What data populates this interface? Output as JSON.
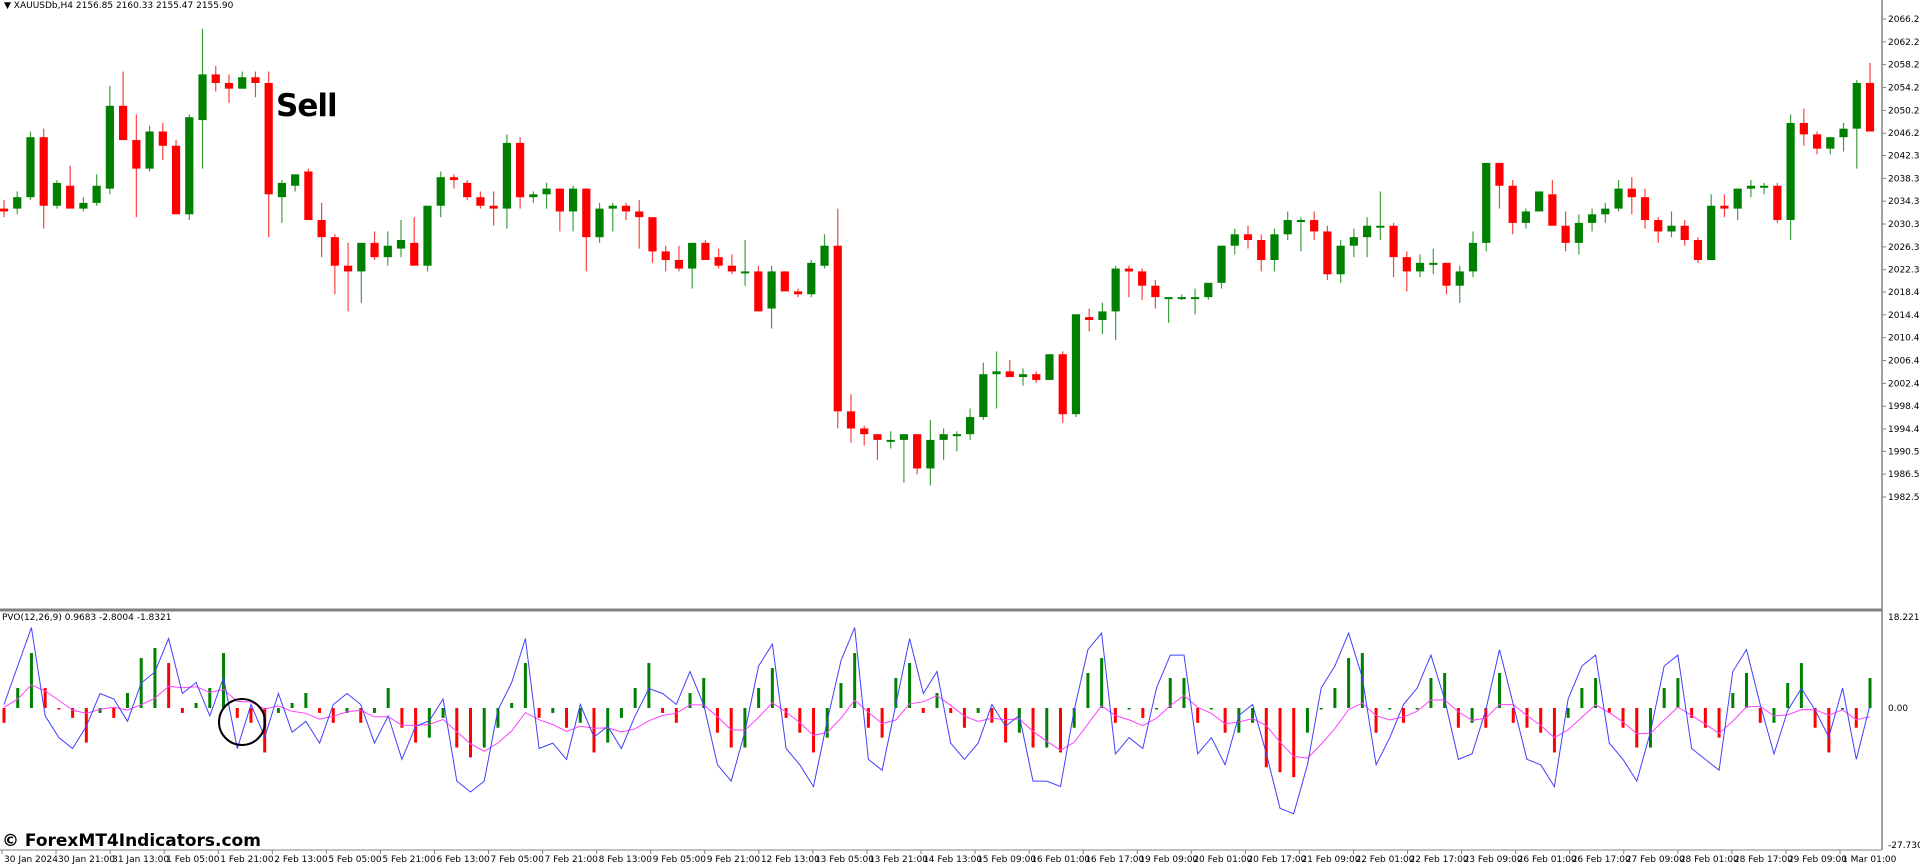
{
  "header": {
    "symbol_line": "XAUUSDb,H4  2156.85 2160.33 2155.47 2155.90",
    "arrow_icon": "triangle-down"
  },
  "annotation": {
    "sell_label": "Sell"
  },
  "indicator": {
    "label": "PVO(12,26,9) 0.9683 -2.8004 -1.8321",
    "axis_max": "18.2212",
    "axis_zero": "0.00",
    "axis_min": "-27.7304"
  },
  "watermark": "© ForexMT4Indicators.com",
  "colors": {
    "bull": "#008000",
    "bear": "#FF0000",
    "pvo_line": "#4040FF",
    "signal_line": "#FF40FF",
    "axis": "#808080",
    "text": "#000000",
    "circle": "#000000"
  },
  "chart_data": [
    {
      "type": "candlestick",
      "title": "XAUUSDb,H4",
      "ylim": [
        1982.5,
        2066.2
      ],
      "y_ticks": [
        "2066.20",
        "2062.20",
        "2058.20",
        "2054.20",
        "2050.20",
        "2046.20",
        "2042.30",
        "2038.30",
        "2034.30",
        "2030.30",
        "2026.30",
        "2022.30",
        "2018.40",
        "2014.40",
        "2010.40",
        "2006.40",
        "2002.40",
        "1998.40",
        "1994.40",
        "1990.50",
        "1986.50",
        "1982.50"
      ],
      "x_ticks": [
        "30 Jan 2024",
        "30 Jan 21:00",
        "31 Jan 13:00",
        "1 Feb 05:00",
        "1 Feb 21:00",
        "2 Feb 13:00",
        "5 Feb 05:00",
        "5 Feb 21:00",
        "6 Feb 13:00",
        "7 Feb 05:00",
        "7 Feb 21:00",
        "8 Feb 13:00",
        "9 Feb 05:00",
        "9 Feb 21:00",
        "12 Feb 13:00",
        "13 Feb 05:00",
        "13 Feb 21:00",
        "14 Feb 13:00",
        "15 Feb 09:00",
        "16 Feb 01:00",
        "16 Feb 17:00",
        "19 Feb 09:00",
        "20 Feb 01:00",
        "20 Feb 17:00",
        "21 Feb 09:00",
        "22 Feb 01:00",
        "22 Feb 17:00",
        "23 Feb 09:00",
        "26 Feb 01:00",
        "26 Feb 17:00",
        "27 Feb 09:00",
        "28 Feb 01:00",
        "28 Feb 17:00",
        "29 Feb 09:00",
        "1 Mar 01:00"
      ],
      "ohlc": [
        [
          2033.0,
          2034.5,
          2031.5,
          2032.5
        ],
        [
          2033.0,
          2036.0,
          2032.0,
          2035.0
        ],
        [
          2035.0,
          2046.5,
          2034.5,
          2045.5
        ],
        [
          2045.5,
          2047.0,
          2029.5,
          2033.5
        ],
        [
          2033.5,
          2038.0,
          2033.0,
          2037.5
        ],
        [
          2037.0,
          2040.5,
          2033.5,
          2033.0
        ],
        [
          2033.0,
          2035.0,
          2032.5,
          2034.0
        ],
        [
          2034.0,
          2039.0,
          2033.5,
          2037.0
        ],
        [
          2036.5,
          2054.5,
          2035.5,
          2051.0
        ],
        [
          2051.0,
          2057.0,
          2047.0,
          2045.0
        ],
        [
          2045.0,
          2049.5,
          2031.5,
          2040.0
        ],
        [
          2040.0,
          2047.5,
          2039.5,
          2046.5
        ],
        [
          2046.5,
          2048.0,
          2041.5,
          2044.0
        ],
        [
          2044.0,
          2045.0,
          2033.0,
          2032.0
        ],
        [
          2032.0,
          2049.5,
          2031.0,
          2049.0
        ],
        [
          2048.5,
          2064.5,
          2040.0,
          2056.5
        ],
        [
          2056.5,
          2058.0,
          2053.5,
          2055.0
        ],
        [
          2055.0,
          2056.5,
          2051.5,
          2054.0
        ],
        [
          2054.0,
          2057.0,
          2054.0,
          2056.0
        ],
        [
          2056.0,
          2057.0,
          2052.5,
          2055.0
        ],
        [
          2055.0,
          2057.0,
          2028.0,
          2035.5
        ],
        [
          2035.0,
          2038.0,
          2030.5,
          2037.5
        ],
        [
          2037.0,
          2039.0,
          2036.0,
          2039.0
        ],
        [
          2039.5,
          2040.0,
          2032.0,
          2031.0
        ],
        [
          2031.0,
          2034.0,
          2024.5,
          2028.0
        ],
        [
          2028.0,
          2028.5,
          2018.0,
          2023.0
        ],
        [
          2023.0,
          2027.0,
          2015.0,
          2022.0
        ],
        [
          2022.0,
          2027.0,
          2016.5,
          2027.0
        ],
        [
          2027.0,
          2029.0,
          2024.0,
          2024.5
        ],
        [
          2024.5,
          2029.0,
          2023.0,
          2026.5
        ],
        [
          2026.0,
          2031.0,
          2024.5,
          2027.5
        ],
        [
          2027.0,
          2031.5,
          2023.5,
          2023.0
        ],
        [
          2023.0,
          2033.0,
          2022.0,
          2033.5
        ],
        [
          2033.5,
          2039.5,
          2031.5,
          2038.5
        ],
        [
          2038.5,
          2039.0,
          2036.5,
          2038.0
        ],
        [
          2037.5,
          2038.0,
          2034.5,
          2035.0
        ],
        [
          2035.0,
          2036.0,
          2033.0,
          2033.5
        ],
        [
          2033.5,
          2036.0,
          2030.0,
          2033.0
        ],
        [
          2033.0,
          2046.0,
          2029.5,
          2044.5
        ],
        [
          2044.5,
          2045.5,
          2033.0,
          2035.0
        ],
        [
          2035.0,
          2036.0,
          2034.0,
          2035.5
        ],
        [
          2035.5,
          2037.5,
          2033.0,
          2036.5
        ],
        [
          2036.5,
          2036.5,
          2029.0,
          2032.5
        ],
        [
          2032.5,
          2037.0,
          2029.0,
          2036.5
        ],
        [
          2036.5,
          2036.5,
          2022.0,
          2028.0
        ],
        [
          2028.0,
          2034.0,
          2027.0,
          2033.0
        ],
        [
          2033.0,
          2034.0,
          2029.0,
          2033.5
        ],
        [
          2033.5,
          2034.0,
          2031.0,
          2032.5
        ],
        [
          2032.5,
          2034.5,
          2026.0,
          2031.5
        ],
        [
          2031.5,
          2031.5,
          2023.5,
          2025.5
        ],
        [
          2025.5,
          2026.5,
          2022.0,
          2024.0
        ],
        [
          2024.0,
          2026.5,
          2022.0,
          2022.5
        ],
        [
          2022.5,
          2027.0,
          2019.0,
          2027.0
        ],
        [
          2027.0,
          2027.5,
          2024.5,
          2024.0
        ],
        [
          2024.5,
          2026.0,
          2022.5,
          2023.0
        ],
        [
          2023.0,
          2025.0,
          2021.5,
          2022.0
        ],
        [
          2022.0,
          2027.5,
          2019.5,
          2022.0
        ],
        [
          2022.0,
          2023.0,
          2016.0,
          2015.0
        ],
        [
          2015.5,
          2023.0,
          2012.0,
          2022.0
        ],
        [
          2022.0,
          2022.0,
          2018.5,
          2018.5
        ],
        [
          2018.5,
          2019.0,
          2017.5,
          2018.0
        ],
        [
          2018.0,
          2024.0,
          2017.5,
          2023.5
        ],
        [
          2023.0,
          2028.5,
          2022.5,
          2026.5
        ],
        [
          2026.5,
          2033.0,
          1994.5,
          1997.5
        ],
        [
          1997.5,
          2000.5,
          1992.0,
          1994.5
        ],
        [
          1994.5,
          1995.0,
          1991.5,
          1993.5
        ],
        [
          1993.5,
          1993.5,
          1989.0,
          1992.5
        ],
        [
          1992.5,
          1994.0,
          1991.0,
          1992.5
        ],
        [
          1992.5,
          1993.5,
          1985.0,
          1993.5
        ],
        [
          1993.5,
          1993.5,
          1986.5,
          1987.5
        ],
        [
          1987.5,
          1996.0,
          1984.5,
          1992.5
        ],
        [
          1992.5,
          1994.5,
          1989.0,
          1993.5
        ],
        [
          1993.5,
          1994.0,
          1990.5,
          1993.5
        ],
        [
          1993.5,
          1998.0,
          1992.5,
          1996.5
        ],
        [
          1996.5,
          2006.0,
          1996.0,
          2004.0
        ],
        [
          2004.0,
          2008.0,
          1998.0,
          2004.5
        ],
        [
          2004.5,
          2006.5,
          2003.5,
          2003.5
        ],
        [
          2003.5,
          2005.0,
          2002.0,
          2004.0
        ],
        [
          2004.0,
          2004.5,
          2002.5,
          2003.0
        ],
        [
          2003.0,
          2007.5,
          2003.0,
          2007.5
        ],
        [
          2007.5,
          2008.0,
          1995.5,
          1997.0
        ],
        [
          1997.0,
          2014.0,
          1996.5,
          2014.5
        ],
        [
          2014.0,
          2015.5,
          2011.5,
          2013.5
        ],
        [
          2013.5,
          2016.5,
          2011.0,
          2015.0
        ],
        [
          2015.0,
          2023.0,
          2010.0,
          2022.5
        ],
        [
          2022.5,
          2023.0,
          2017.5,
          2022.0
        ],
        [
          2022.0,
          2022.5,
          2017.0,
          2019.5
        ],
        [
          2019.5,
          2020.5,
          2015.5,
          2017.5
        ],
        [
          2017.5,
          2017.5,
          2013.0,
          2017.5
        ],
        [
          2017.5,
          2018.0,
          2017.0,
          2017.5
        ],
        [
          2017.5,
          2019.0,
          2014.5,
          2017.5
        ],
        [
          2017.5,
          2020.0,
          2017.0,
          2020.0
        ],
        [
          2020.0,
          2026.5,
          2019.0,
          2026.5
        ],
        [
          2026.5,
          2029.5,
          2025.0,
          2028.5
        ],
        [
          2028.5,
          2030.0,
          2026.0,
          2027.5
        ],
        [
          2027.5,
          2028.5,
          2022.0,
          2024.0
        ],
        [
          2024.0,
          2029.5,
          2022.0,
          2028.5
        ],
        [
          2028.5,
          2032.5,
          2027.5,
          2031.0
        ],
        [
          2031.0,
          2031.5,
          2025.5,
          2031.0
        ],
        [
          2031.0,
          2032.5,
          2027.5,
          2029.0
        ],
        [
          2029.0,
          2030.0,
          2020.5,
          2021.5
        ],
        [
          2021.5,
          2027.5,
          2020.0,
          2026.5
        ],
        [
          2026.5,
          2029.5,
          2024.5,
          2028.0
        ],
        [
          2028.0,
          2031.5,
          2024.5,
          2030.0
        ],
        [
          2030.0,
          2036.0,
          2027.5,
          2030.0
        ],
        [
          2030.0,
          2030.5,
          2021.0,
          2024.5
        ],
        [
          2024.5,
          2025.5,
          2018.5,
          2022.0
        ],
        [
          2022.0,
          2025.0,
          2021.0,
          2023.5
        ],
        [
          2023.5,
          2026.0,
          2021.5,
          2023.5
        ],
        [
          2023.5,
          2023.5,
          2018.0,
          2019.5
        ],
        [
          2019.5,
          2023.0,
          2016.5,
          2022.0
        ],
        [
          2022.0,
          2029.0,
          2021.0,
          2027.0
        ],
        [
          2027.0,
          2041.0,
          2025.5,
          2041.0
        ],
        [
          2041.0,
          2041.0,
          2033.0,
          2037.0
        ],
        [
          2037.0,
          2038.0,
          2028.5,
          2030.5
        ],
        [
          2030.5,
          2033.0,
          2029.5,
          2032.5
        ],
        [
          2032.5,
          2036.0,
          2032.5,
          2036.0
        ],
        [
          2035.5,
          2038.0,
          2030.5,
          2030.0
        ],
        [
          2030.0,
          2032.5,
          2025.5,
          2027.0
        ],
        [
          2027.0,
          2032.0,
          2025.0,
          2030.5
        ],
        [
          2030.5,
          2033.0,
          2029.0,
          2032.0
        ],
        [
          2032.0,
          2034.0,
          2030.5,
          2033.0
        ],
        [
          2033.0,
          2038.0,
          2032.5,
          2036.5
        ],
        [
          2036.5,
          2038.5,
          2032.0,
          2035.0
        ],
        [
          2035.0,
          2036.5,
          2029.5,
          2031.0
        ],
        [
          2031.0,
          2031.5,
          2027.0,
          2029.0
        ],
        [
          2029.0,
          2032.5,
          2028.0,
          2030.0
        ],
        [
          2030.0,
          2031.0,
          2026.5,
          2027.5
        ],
        [
          2027.5,
          2028.0,
          2023.5,
          2024.0
        ],
        [
          2024.0,
          2035.5,
          2024.0,
          2033.5
        ],
        [
          2033.5,
          2035.5,
          2031.5,
          2033.0
        ],
        [
          2033.0,
          2036.0,
          2031.0,
          2036.5
        ],
        [
          2036.5,
          2038.0,
          2035.0,
          2037.0
        ],
        [
          2037.0,
          2037.5,
          2035.5,
          2037.0
        ],
        [
          2037.0,
          2037.5,
          2030.5,
          2031.0
        ],
        [
          2031.0,
          2049.5,
          2027.5,
          2048.0
        ],
        [
          2048.0,
          2050.5,
          2044.0,
          2046.0
        ],
        [
          2046.0,
          2046.5,
          2042.5,
          2043.5
        ],
        [
          2043.5,
          2045.0,
          2042.5,
          2045.5
        ],
        [
          2045.5,
          2048.0,
          2043.0,
          2047.0
        ],
        [
          2047.0,
          2055.5,
          2040.0,
          2055.0
        ],
        [
          2055.0,
          2058.5,
          2046.5,
          2046.5
        ]
      ]
    },
    {
      "type": "histogram+line",
      "title": "PVO(12,26,9)",
      "ylim": [
        -27.7304,
        18.2212
      ],
      "series": [
        {
          "name": "PVO histogram",
          "values": [
            -3,
            4,
            11,
            4,
            0,
            -2,
            -7,
            -1,
            -2,
            3,
            10,
            12,
            9,
            -1,
            1,
            4,
            11,
            -2,
            -3,
            -9,
            -1,
            1,
            3,
            -1,
            -3,
            -1,
            -3,
            -1,
            4,
            -4,
            -7,
            -6,
            -2,
            -8,
            -10,
            -8,
            -4,
            1,
            9,
            -2,
            -1,
            -4,
            -3,
            -9,
            -7,
            -2,
            4,
            9,
            -1,
            -3,
            3,
            6,
            -5,
            -8,
            -8,
            4,
            8,
            -2,
            -5,
            -9,
            -6,
            5,
            11,
            -4,
            -6,
            6,
            9,
            -1,
            3,
            -1,
            -4,
            -1,
            -3,
            -7,
            -5,
            -8,
            -8,
            -9,
            -4,
            7,
            10,
            -3,
            0,
            -2,
            0,
            6,
            6,
            -3,
            0,
            -5,
            -5,
            -3,
            -12,
            -13,
            -14,
            -5,
            0,
            4,
            10,
            11,
            -5,
            0,
            -3,
            0,
            6,
            7,
            -4,
            -3,
            -4,
            7,
            -3,
            -4,
            -5,
            -9,
            -2,
            4,
            6,
            -1,
            -4,
            -8,
            -8,
            4,
            6,
            -2,
            -4,
            -6,
            3,
            7,
            -3,
            -3,
            5,
            9,
            -4,
            -9,
            0,
            -4,
            6
          ],
          "color_rule": "green if rising, red if falling"
        },
        {
          "name": "PVO line",
          "color": "#4040FF"
        },
        {
          "name": "Signal line",
          "color": "#FF40FF"
        }
      ],
      "last_values": {
        "hist": 0.9683,
        "pvo": -2.8004,
        "signal": -1.8321
      }
    }
  ]
}
